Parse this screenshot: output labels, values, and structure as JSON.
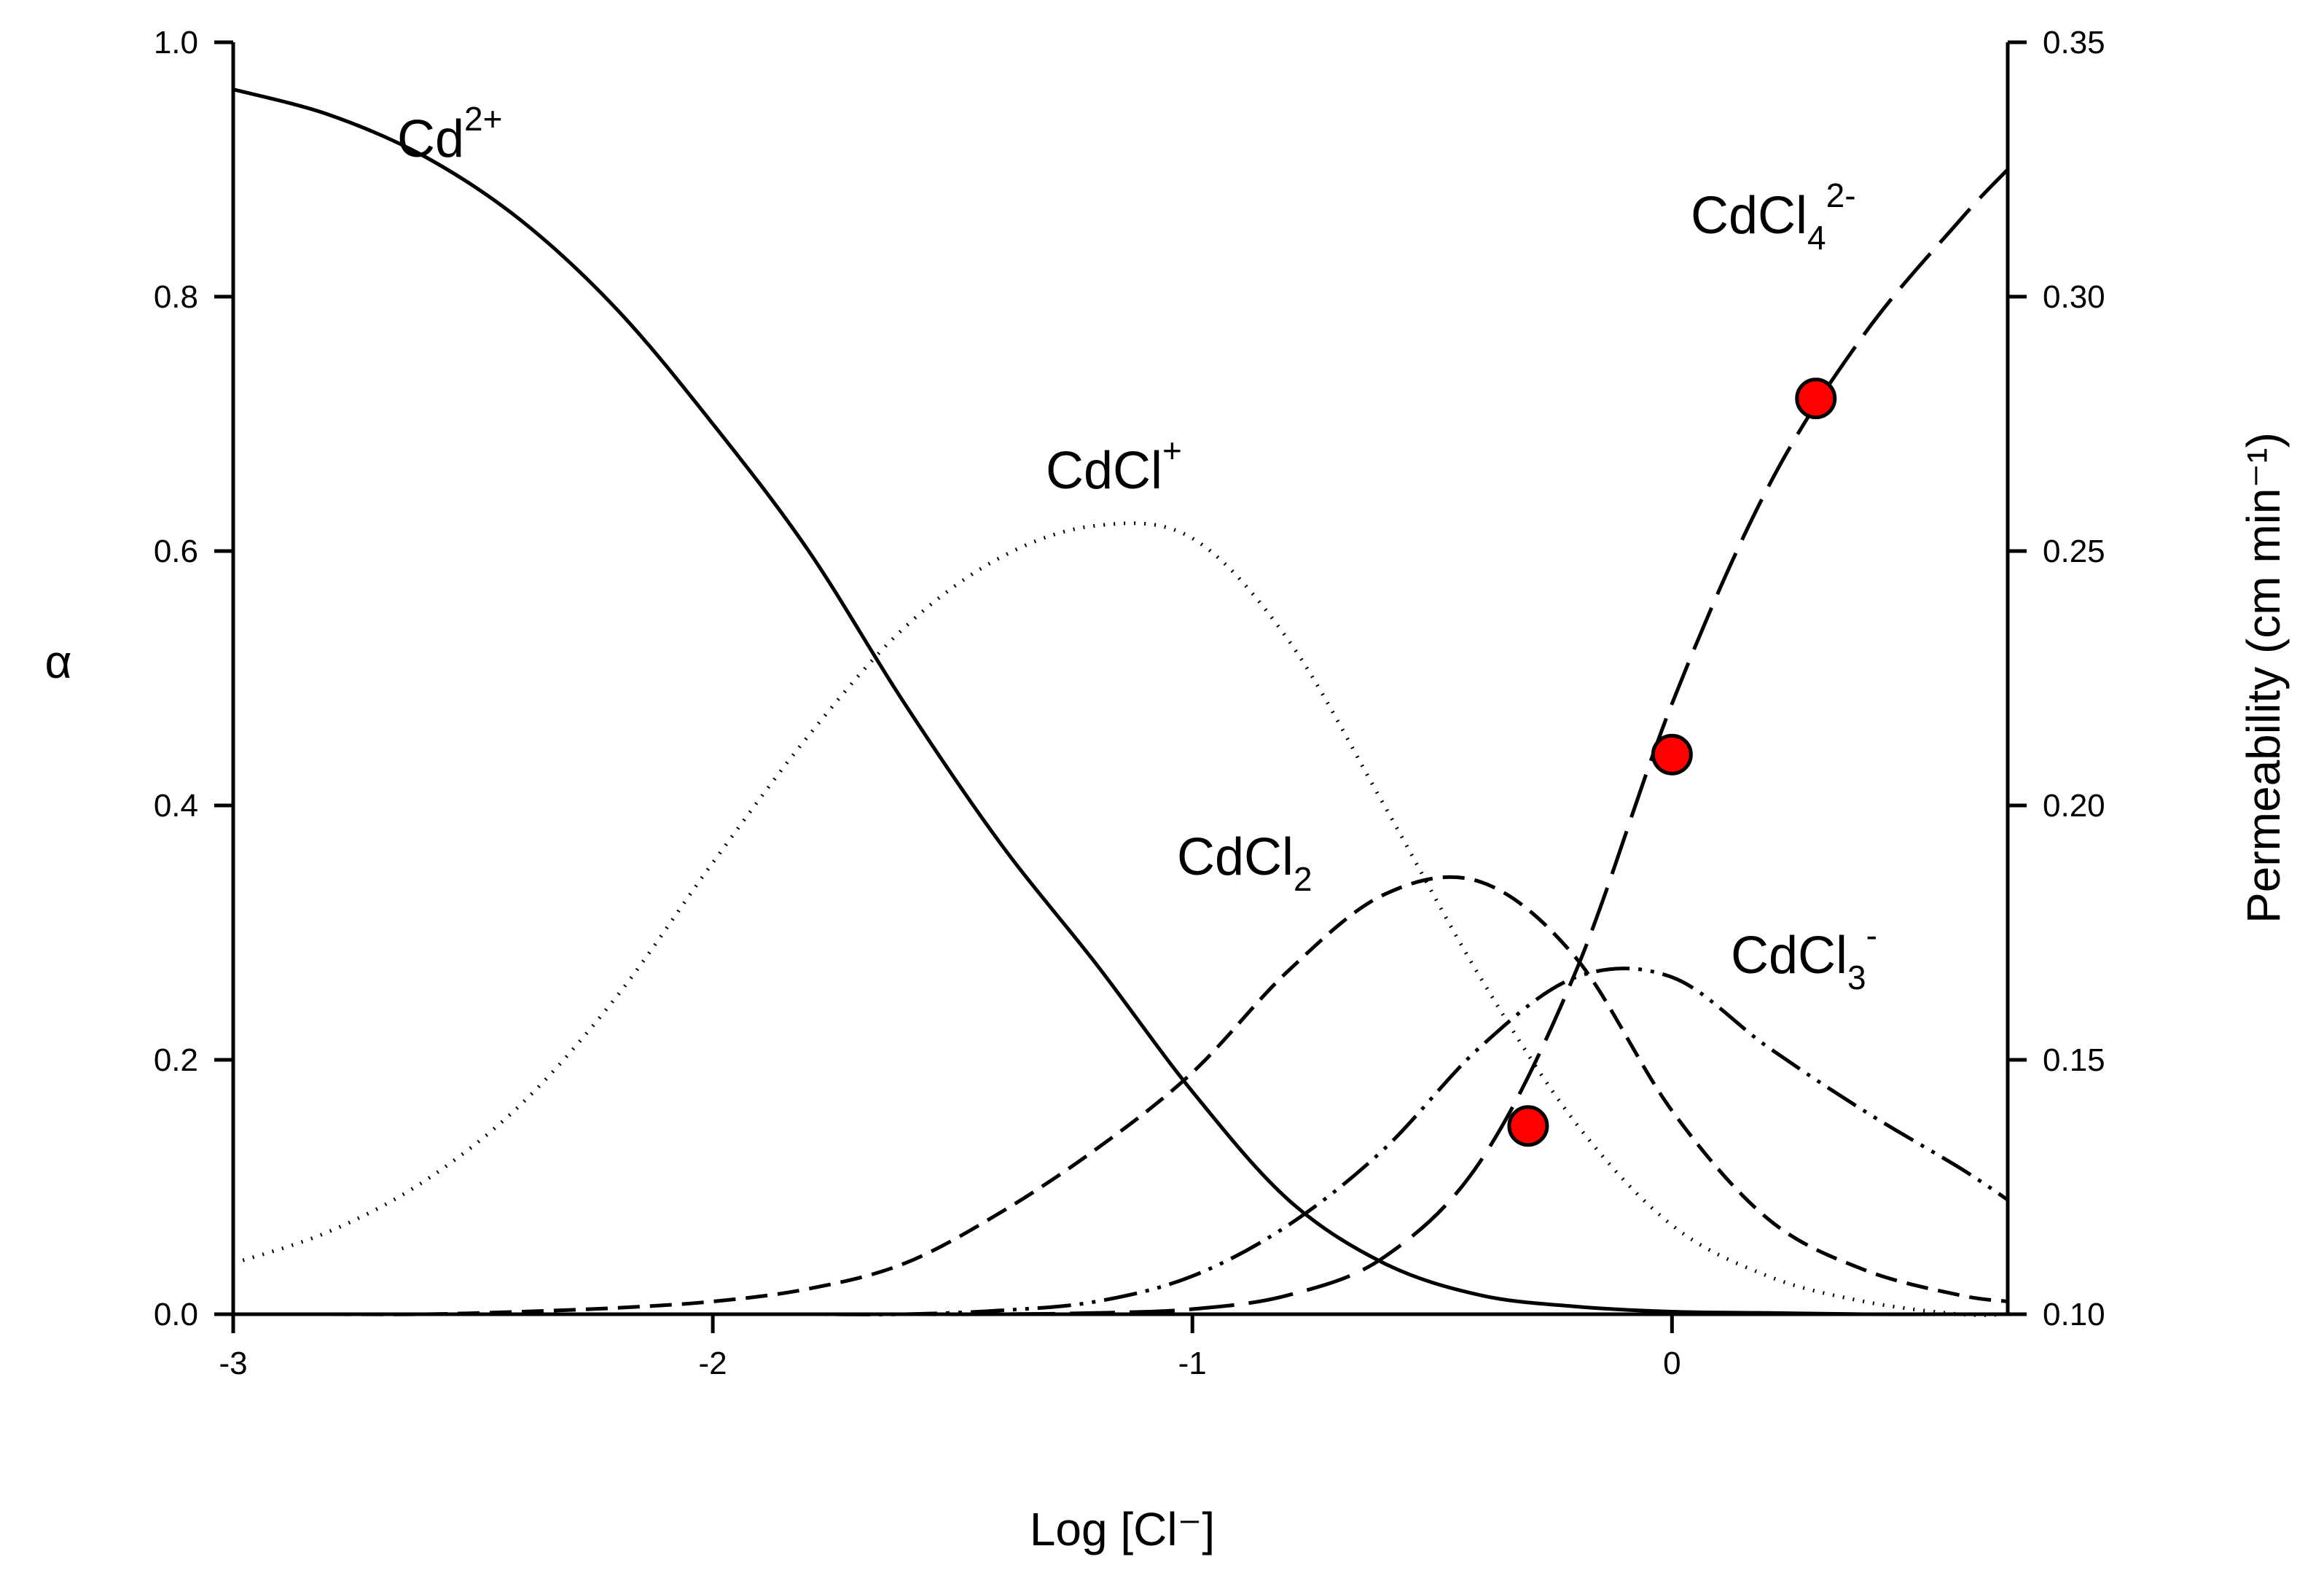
{
  "chart_data": {
    "type": "line",
    "title": "",
    "xlabel": "Log [Cl⁻]",
    "ylabel_left": "α",
    "ylabel_right": "Permeability (cm min⁻¹)",
    "xlim": [
      -3,
      0.7
    ],
    "ylim_left": [
      0.0,
      1.0
    ],
    "ylim_right": [
      0.1,
      0.35
    ],
    "grid": false,
    "x_ticks": [
      "-3",
      "-2",
      "-1",
      "0"
    ],
    "y_left_ticks": [
      "0.0",
      "0.2",
      "0.4",
      "0.6",
      "0.8",
      "1.0"
    ],
    "y_right_ticks": [
      "0.10",
      "0.15",
      "0.20",
      "0.25",
      "0.30",
      "0.35"
    ],
    "x": [
      -3.0,
      -2.8,
      -2.6,
      -2.4,
      -2.2,
      -2.0,
      -1.8,
      -1.6,
      -1.4,
      -1.2,
      -1.0,
      -0.8,
      -0.6,
      -0.4,
      -0.2,
      0.0,
      0.2,
      0.4,
      0.6,
      0.7
    ],
    "series": [
      {
        "name": "Cd2+",
        "label": {
          "main": "Cd",
          "sup": "2+"
        },
        "style": "solid",
        "axis": "left",
        "values": [
          0.963,
          0.943,
          0.91,
          0.86,
          0.79,
          0.7,
          0.6,
          0.48,
          0.37,
          0.275,
          0.175,
          0.09,
          0.04,
          0.015,
          0.006,
          0.002,
          0.001,
          0.0,
          0.0,
          0.0
        ]
      },
      {
        "name": "CdCl+",
        "label": {
          "main": "CdCl",
          "sup": "+"
        },
        "style": "dotted",
        "axis": "left",
        "values": [
          0.04,
          0.065,
          0.105,
          0.165,
          0.25,
          0.355,
          0.455,
          0.54,
          0.595,
          0.62,
          0.61,
          0.53,
          0.4,
          0.265,
          0.15,
          0.07,
          0.03,
          0.01,
          0.0,
          0.0
        ]
      },
      {
        "name": "CdCl2",
        "label": {
          "main": "CdCl",
          "sub": "2"
        },
        "style": "dashed",
        "axis": "left",
        "values": [
          0.0,
          0.0,
          0.0,
          0.002,
          0.005,
          0.01,
          0.02,
          0.04,
          0.08,
          0.13,
          0.19,
          0.27,
          0.33,
          0.34,
          0.28,
          0.16,
          0.075,
          0.035,
          0.015,
          0.01
        ]
      },
      {
        "name": "CdCl3-",
        "label": {
          "main": "CdCl",
          "sub": "3",
          "sup": "-"
        },
        "style": "dash-dot-dot",
        "axis": "left",
        "values": [
          0.0,
          0.0,
          0.0,
          0.0,
          0.0,
          0.0,
          0.0,
          0.0,
          0.003,
          0.01,
          0.03,
          0.07,
          0.13,
          0.21,
          0.265,
          0.265,
          0.21,
          0.16,
          0.115,
          0.09
        ]
      },
      {
        "name": "CdCl4 2-",
        "label": {
          "main": "CdCl",
          "sub": "4",
          "sup": "2-"
        },
        "style": "long-dash",
        "axis": "left",
        "values": [
          0.0,
          0.0,
          0.0,
          0.0,
          0.0,
          0.0,
          0.0,
          0.0,
          0.0,
          0.001,
          0.004,
          0.015,
          0.045,
          0.12,
          0.27,
          0.48,
          0.65,
          0.77,
          0.86,
          0.9
        ]
      },
      {
        "name": "Permeability",
        "style": "marker",
        "axis": "right",
        "color": "#ff0000",
        "x": [
          -0.3,
          0.0,
          0.3
        ],
        "values": [
          0.137,
          0.21,
          0.28
        ]
      }
    ]
  }
}
